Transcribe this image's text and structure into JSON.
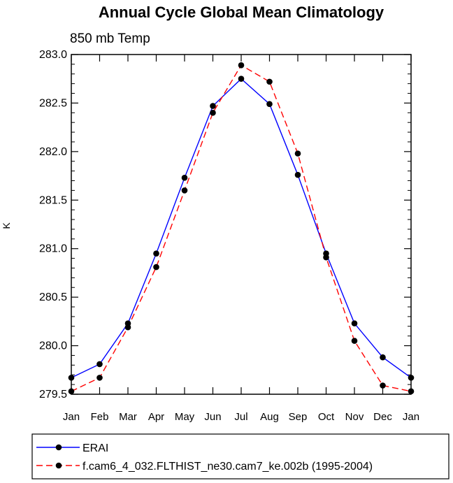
{
  "chart_data": {
    "type": "line",
    "title": "Annual Cycle Global Mean Climatology",
    "subtitle": "850 mb Temp",
    "xlabel": "",
    "ylabel": "K",
    "categories": [
      "Jan",
      "Feb",
      "Mar",
      "Apr",
      "May",
      "Jun",
      "Jul",
      "Aug",
      "Sep",
      "Oct",
      "Nov",
      "Dec",
      "Jan"
    ],
    "ylim": [
      279.5,
      283.0
    ],
    "yticks": [
      "279.5",
      "280.0",
      "280.5",
      "281.0",
      "281.5",
      "282.0",
      "282.5",
      "283.0"
    ],
    "grid": false,
    "legend_position": "bottom",
    "series": [
      {
        "name": "ERAI",
        "color": "#0000ff",
        "dash": "solid",
        "values": [
          279.67,
          279.81,
          280.23,
          280.95,
          281.73,
          282.47,
          282.75,
          282.49,
          281.76,
          280.95,
          280.23,
          279.88,
          279.67
        ]
      },
      {
        "name": "f.cam6_4_032.FLTHIST_ne30.cam7_ke.002b (1995-2004)",
        "color": "#ff0000",
        "dash": "dashed",
        "values": [
          279.53,
          279.67,
          280.19,
          280.81,
          281.6,
          282.4,
          282.89,
          282.72,
          281.98,
          280.91,
          280.05,
          279.59,
          279.53
        ]
      }
    ]
  }
}
